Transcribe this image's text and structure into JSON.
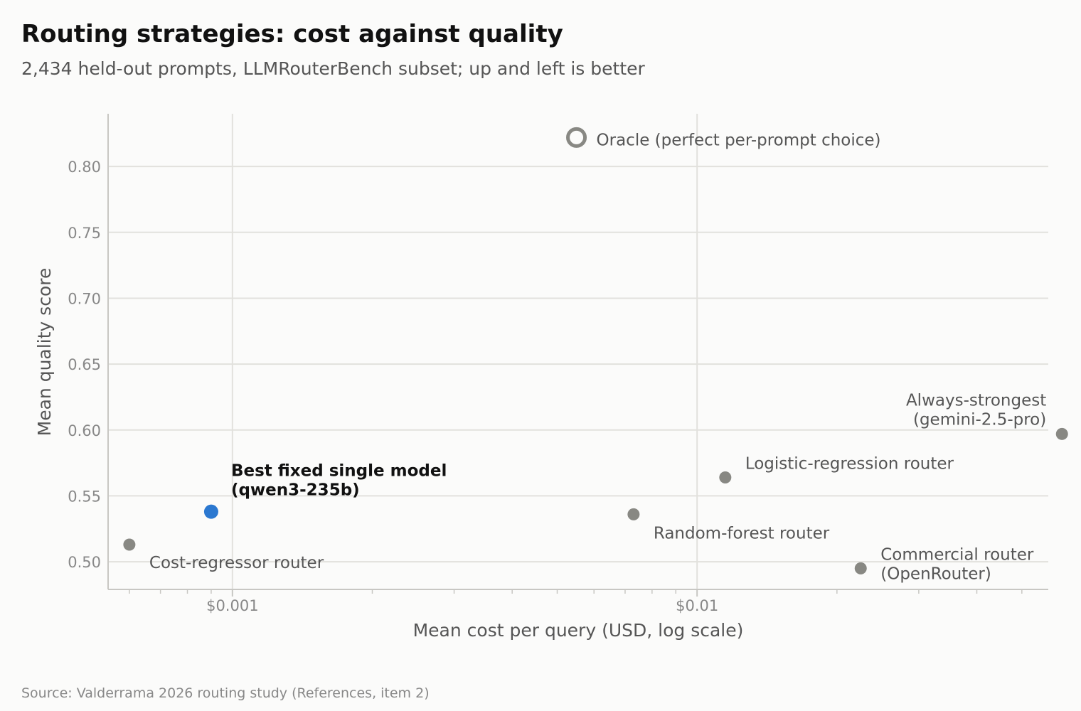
{
  "title": "Routing strategies: cost against quality",
  "subtitle": "2,434 held-out prompts, LLMRouterBench subset; up and left is better",
  "source": "Source: Valderrama 2026 routing study (References, item 2)",
  "colors": {
    "highlight": "#2b78d0",
    "point": "#888883",
    "grid": "#e2e1dd",
    "axis": "#c8c7c3"
  },
  "chart_data": {
    "type": "scatter",
    "xlabel": "Mean cost per query (USD, log scale)",
    "ylabel": "Mean quality score",
    "x_scale": "log",
    "xlim": [
      0.00054,
      0.057
    ],
    "ylim": [
      0.479,
      0.84
    ],
    "x_ticks": [
      {
        "value": 0.001,
        "label": "$0.001"
      },
      {
        "value": 0.01,
        "label": "$0.01"
      }
    ],
    "y_ticks": [
      {
        "value": 0.5,
        "label": "0.50"
      },
      {
        "value": 0.55,
        "label": "0.55"
      },
      {
        "value": 0.6,
        "label": "0.60"
      },
      {
        "value": 0.65,
        "label": "0.65"
      },
      {
        "value": 0.7,
        "label": "0.70"
      },
      {
        "value": 0.75,
        "label": "0.75"
      },
      {
        "value": 0.8,
        "label": "0.80"
      }
    ],
    "grid": true,
    "points": [
      {
        "label_lines": [
          "Oracle (perfect per-prompt choice)"
        ],
        "x": 0.0055,
        "y": 0.822,
        "style": "hollow"
      },
      {
        "label_lines": [
          "Always-strongest",
          "(gemini-2.5-pro)"
        ],
        "x": 0.061,
        "y": 0.597,
        "style": "normal"
      },
      {
        "label_lines": [
          "Logistic-regression router"
        ],
        "x": 0.0115,
        "y": 0.564,
        "style": "normal"
      },
      {
        "label_lines": [
          "Best fixed single model",
          "(qwen3-235b)"
        ],
        "x": 0.0009,
        "y": 0.538,
        "style": "highlight"
      },
      {
        "label_lines": [
          "Random-forest router"
        ],
        "x": 0.0073,
        "y": 0.536,
        "style": "normal"
      },
      {
        "label_lines": [
          "Cost-regressor router"
        ],
        "x": 0.0006,
        "y": 0.513,
        "style": "normal"
      },
      {
        "label_lines": [
          "Commercial router",
          "(OpenRouter)"
        ],
        "x": 0.0225,
        "y": 0.495,
        "style": "normal"
      }
    ]
  }
}
